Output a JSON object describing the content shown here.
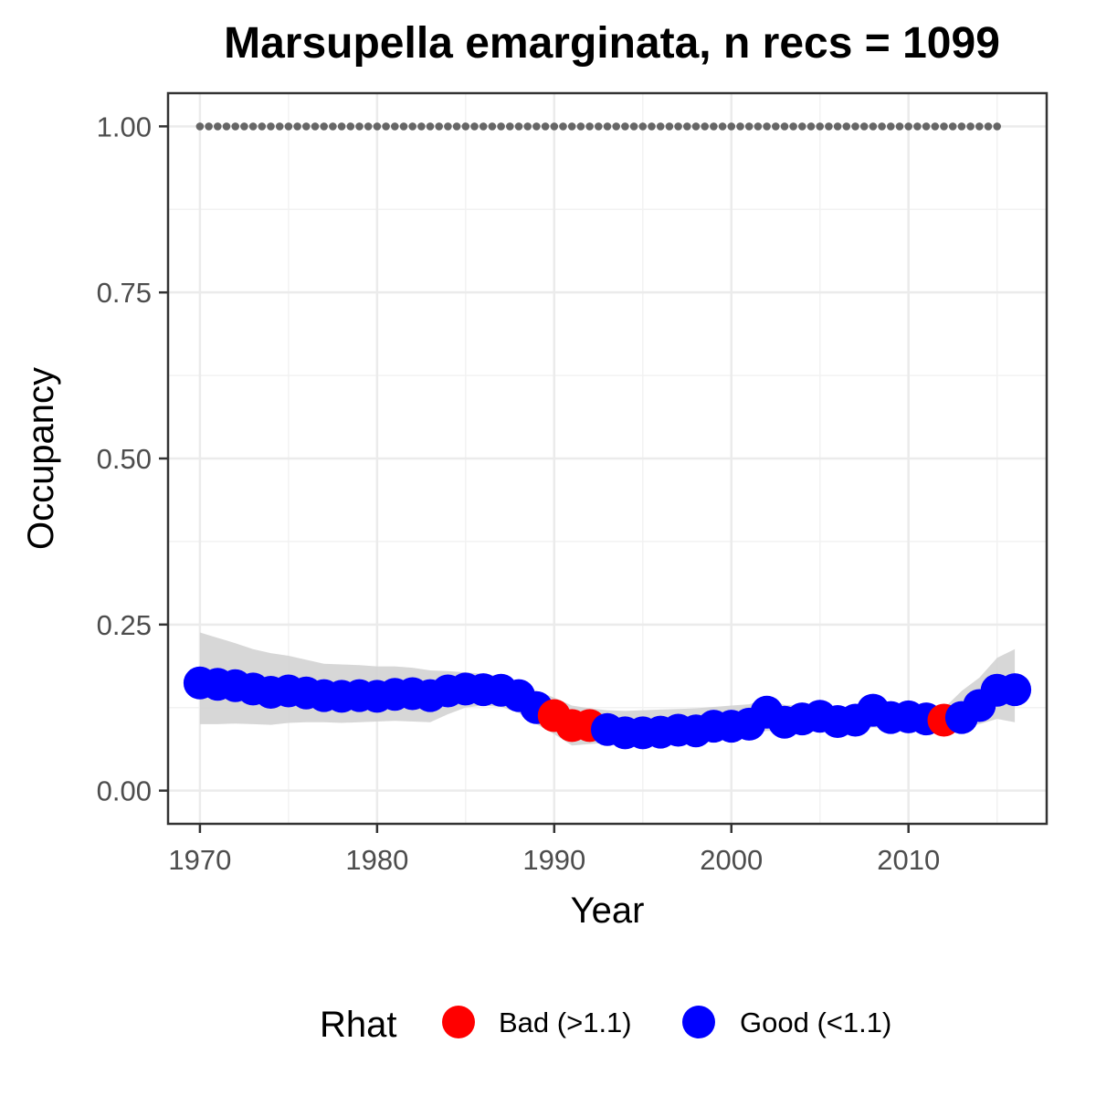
{
  "chart_data": {
    "type": "scatter",
    "title": "Marsupella emarginata, n recs = 1099",
    "xlabel": "Year",
    "ylabel": "Occupancy",
    "xlim": [
      1968.2,
      2017.8
    ],
    "ylim": [
      -0.05,
      1.05
    ],
    "x_ticks": [
      1970,
      1980,
      1990,
      2000,
      2010
    ],
    "x_tick_labels": [
      "1970",
      "1980",
      "1990",
      "2000",
      "2010"
    ],
    "y_ticks": [
      0,
      0.25,
      0.5,
      0.75,
      1
    ],
    "y_tick_labels": [
      "0.00",
      "0.25",
      "0.50",
      "0.75",
      "1.00"
    ],
    "grid": true,
    "legend": {
      "title": "Rhat",
      "placement": "bottom",
      "entries": [
        {
          "label": "Bad (>1.1)",
          "color": "#ff0000"
        },
        {
          "label": "Good (<1.1)",
          "color": "#0000ff"
        }
      ]
    },
    "colors": {
      "bad": "#ff0000",
      "good": "#0000ff",
      "ribbon": "#d3d3d3",
      "reference": "#666666"
    },
    "reference_line": {
      "y": 1.0,
      "x_range": [
        1970,
        2015
      ],
      "style": "dotted"
    },
    "series": [
      {
        "x": [
          1970,
          1971,
          1972,
          1973,
          1974,
          1975,
          1976,
          1977,
          1978,
          1979,
          1980,
          1981,
          1982,
          1983,
          1984,
          1985,
          1986,
          1987,
          1988,
          1989,
          1990,
          1991,
          1992,
          1993,
          1994,
          1995,
          1996,
          1997,
          1998,
          1999,
          2000,
          2001,
          2002,
          2003,
          2004,
          2005,
          2006,
          2007,
          2008,
          2009,
          2010,
          2011,
          2012,
          2013,
          2014,
          2015,
          2016
        ],
        "y": [
          0.162,
          0.16,
          0.158,
          0.153,
          0.148,
          0.15,
          0.147,
          0.143,
          0.142,
          0.143,
          0.142,
          0.145,
          0.146,
          0.143,
          0.15,
          0.153,
          0.152,
          0.151,
          0.143,
          0.125,
          0.113,
          0.098,
          0.098,
          0.092,
          0.087,
          0.087,
          0.088,
          0.091,
          0.09,
          0.097,
          0.097,
          0.1,
          0.118,
          0.103,
          0.108,
          0.112,
          0.104,
          0.106,
          0.121,
          0.11,
          0.111,
          0.108,
          0.106,
          0.11,
          0.128,
          0.151,
          0.152
        ],
        "lower": [
          0.1,
          0.1,
          0.101,
          0.1,
          0.099,
          0.102,
          0.103,
          0.103,
          0.102,
          0.103,
          0.104,
          0.105,
          0.104,
          0.103,
          0.115,
          0.125,
          0.128,
          0.126,
          0.117,
          0.1,
          0.085,
          0.068,
          0.07,
          0.072,
          0.074,
          0.075,
          0.076,
          0.078,
          0.079,
          0.082,
          0.083,
          0.085,
          0.09,
          0.09,
          0.092,
          0.093,
          0.09,
          0.091,
          0.095,
          0.093,
          0.093,
          0.09,
          0.088,
          0.095,
          0.1,
          0.108,
          0.103
        ],
        "upper": [
          0.238,
          0.23,
          0.222,
          0.213,
          0.207,
          0.203,
          0.197,
          0.191,
          0.19,
          0.189,
          0.187,
          0.187,
          0.185,
          0.181,
          0.18,
          0.178,
          0.176,
          0.172,
          0.163,
          0.15,
          0.14,
          0.128,
          0.124,
          0.121,
          0.12,
          0.121,
          0.122,
          0.123,
          0.124,
          0.126,
          0.128,
          0.13,
          0.138,
          0.129,
          0.128,
          0.13,
          0.126,
          0.126,
          0.134,
          0.128,
          0.127,
          0.125,
          0.124,
          0.15,
          0.17,
          0.2,
          0.213
        ],
        "rhat": [
          "Good",
          "Good",
          "Good",
          "Good",
          "Good",
          "Good",
          "Good",
          "Good",
          "Good",
          "Good",
          "Good",
          "Good",
          "Good",
          "Good",
          "Good",
          "Good",
          "Good",
          "Good",
          "Good",
          "Good",
          "Bad",
          "Bad",
          "Bad",
          "Good",
          "Good",
          "Good",
          "Good",
          "Good",
          "Good",
          "Good",
          "Good",
          "Good",
          "Good",
          "Good",
          "Good",
          "Good",
          "Good",
          "Good",
          "Good",
          "Good",
          "Good",
          "Good",
          "Bad",
          "Good",
          "Good",
          "Good",
          "Good"
        ]
      }
    ]
  }
}
